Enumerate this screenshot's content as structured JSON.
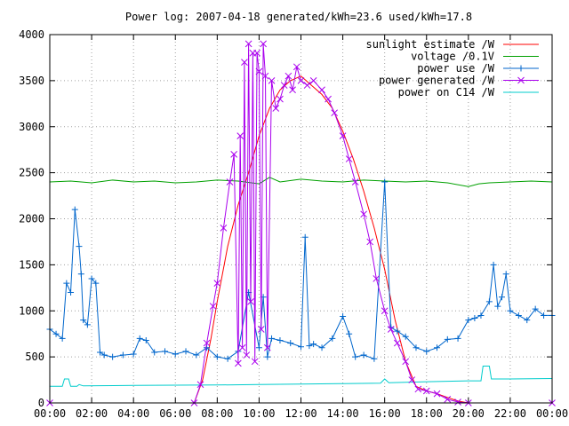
{
  "chart_data": {
    "type": "line",
    "title": "Power log: 2007-04-18 generated/kWh=23.6 used/kWh=17.8",
    "xlabel": "",
    "ylabel": "",
    "xlim": [
      0,
      24
    ],
    "ylim": [
      0,
      4000
    ],
    "grid": true,
    "legend_position": "top-right",
    "x_tick_labels": [
      "00:00",
      "02:00",
      "04:00",
      "06:00",
      "08:00",
      "10:00",
      "12:00",
      "14:00",
      "16:00",
      "18:00",
      "20:00",
      "22:00",
      "00:00"
    ],
    "y_tick_labels": [
      "0",
      "500",
      "1000",
      "1500",
      "2000",
      "2500",
      "3000",
      "3500",
      "4000"
    ],
    "series": [
      {
        "name": "sunlight estimate /W",
        "color": "#ff0000",
        "marker": "none",
        "x": [
          0,
          6.9,
          7.3,
          7.7,
          8.0,
          8.5,
          9.0,
          9.5,
          10.0,
          10.5,
          11.0,
          11.5,
          12.0,
          12.5,
          13.0,
          13.5,
          14.0,
          14.5,
          15.0,
          15.5,
          16.0,
          16.5,
          17.0,
          17.5,
          18.0,
          18.5,
          19.0,
          19.5,
          20.0,
          24.0
        ],
        "y": [
          0,
          0,
          250,
          700,
          1100,
          1700,
          2150,
          2500,
          2900,
          3200,
          3400,
          3500,
          3550,
          3450,
          3350,
          3200,
          2950,
          2650,
          2300,
          1900,
          1450,
          900,
          450,
          180,
          130,
          100,
          60,
          20,
          0,
          0
        ]
      },
      {
        "name": "voltage /0.1V",
        "color": "#00a000",
        "marker": "none",
        "x": [
          0,
          1.0,
          2.0,
          3.0,
          4.0,
          5.0,
          6.0,
          7.0,
          8.0,
          9.0,
          10.0,
          10.5,
          11.0,
          12.0,
          13.0,
          14.0,
          15.0,
          16.0,
          17.0,
          18.0,
          19.0,
          20.0,
          20.5,
          21.0,
          22.0,
          23.0,
          24.0
        ],
        "y": [
          2400,
          2410,
          2390,
          2420,
          2400,
          2410,
          2390,
          2400,
          2420,
          2410,
          2380,
          2450,
          2400,
          2430,
          2410,
          2400,
          2420,
          2410,
          2400,
          2410,
          2390,
          2350,
          2380,
          2390,
          2400,
          2410,
          2400
        ]
      },
      {
        "name": "power use /W",
        "color": "#0066cc",
        "marker": "plus",
        "x": [
          0,
          0.3,
          0.6,
          0.8,
          1.0,
          1.2,
          1.4,
          1.5,
          1.6,
          1.8,
          2.0,
          2.2,
          2.4,
          2.6,
          3.0,
          3.5,
          4.0,
          4.3,
          4.6,
          5.0,
          5.5,
          6.0,
          6.5,
          7.0,
          7.5,
          8.0,
          8.5,
          9.0,
          9.5,
          10.0,
          10.2,
          10.4,
          10.6,
          11.0,
          11.5,
          12.0,
          12.2,
          12.4,
          12.6,
          13.0,
          13.5,
          14.0,
          14.3,
          14.6,
          15.0,
          15.5,
          16.0,
          16.3,
          16.6,
          17.0,
          17.5,
          18.0,
          18.5,
          19.0,
          19.5,
          20.0,
          20.3,
          20.6,
          21.0,
          21.2,
          21.4,
          21.6,
          21.8,
          22.0,
          22.4,
          22.8,
          23.2,
          23.6,
          24.0
        ],
        "y": [
          800,
          750,
          700,
          1300,
          1200,
          2100,
          1700,
          1400,
          900,
          850,
          1350,
          1300,
          550,
          520,
          500,
          520,
          530,
          700,
          680,
          550,
          560,
          530,
          560,
          520,
          600,
          500,
          480,
          560,
          1200,
          600,
          1150,
          500,
          700,
          680,
          650,
          610,
          1800,
          620,
          640,
          600,
          700,
          940,
          750,
          500,
          520,
          480,
          2400,
          820,
          780,
          720,
          600,
          560,
          600,
          690,
          700,
          900,
          920,
          950,
          1100,
          1500,
          1050,
          1150,
          1400,
          1000,
          950,
          900,
          1020,
          950,
          950
        ]
      },
      {
        "name": "power generated /W",
        "color": "#aa00ee",
        "marker": "cross",
        "x": [
          0,
          6.9,
          7.2,
          7.5,
          7.8,
          8.0,
          8.3,
          8.6,
          8.8,
          9.0,
          9.1,
          9.2,
          9.3,
          9.4,
          9.5,
          9.6,
          9.7,
          9.8,
          9.9,
          10.0,
          10.1,
          10.2,
          10.3,
          10.4,
          10.6,
          10.8,
          11.0,
          11.2,
          11.4,
          11.6,
          11.8,
          12.0,
          12.3,
          12.6,
          13.0,
          13.3,
          13.6,
          14.0,
          14.3,
          14.6,
          15.0,
          15.3,
          15.6,
          16.0,
          16.3,
          16.6,
          17.0,
          17.3,
          17.6,
          18.0,
          18.5,
          19.0,
          19.5,
          20.0,
          24.0
        ],
        "y": [
          0,
          0,
          200,
          650,
          1050,
          1300,
          1900,
          2400,
          2700,
          430,
          2900,
          600,
          3700,
          520,
          3900,
          1100,
          3800,
          450,
          3800,
          3600,
          800,
          3900,
          3550,
          600,
          3500,
          3200,
          3300,
          3450,
          3550,
          3400,
          3650,
          3500,
          3450,
          3500,
          3400,
          3300,
          3150,
          2900,
          2650,
          2400,
          2050,
          1750,
          1350,
          1000,
          800,
          650,
          450,
          250,
          150,
          130,
          100,
          40,
          10,
          0,
          0
        ]
      },
      {
        "name": "power on C14 /W",
        "color": "#00cccc",
        "marker": "none",
        "x": [
          0,
          0.6,
          0.7,
          0.9,
          1.0,
          1.3,
          1.4,
          1.6,
          4.0,
          8.0,
          10.0,
          12.0,
          14.0,
          15.8,
          16.0,
          16.2,
          18.0,
          20.0,
          20.6,
          20.7,
          21.0,
          21.1,
          22.0,
          24.0
        ],
        "y": [
          180,
          180,
          260,
          260,
          180,
          180,
          200,
          185,
          190,
          195,
          200,
          205,
          210,
          215,
          260,
          220,
          230,
          240,
          240,
          400,
          400,
          260,
          260,
          265
        ]
      }
    ]
  }
}
